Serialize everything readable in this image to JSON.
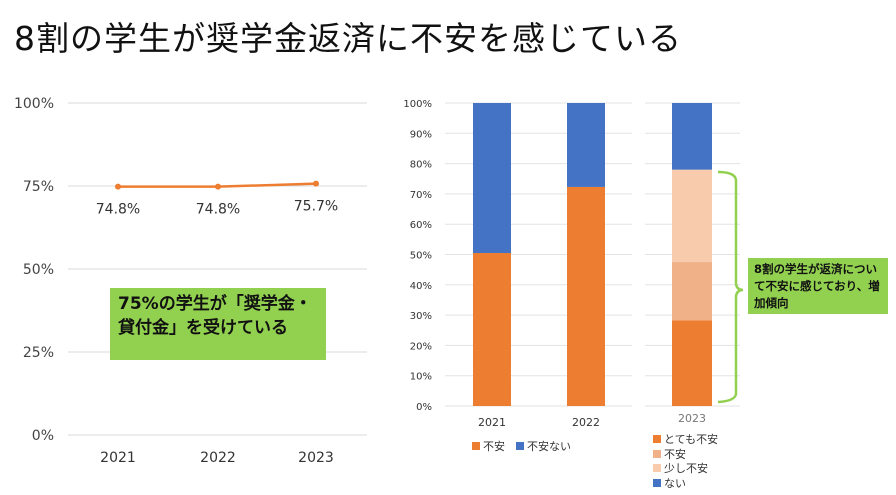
{
  "title": "8割の学生が奨学金返済に不安を感じている",
  "notes": {
    "left": "75%の学生が「奨学金・貸付金」を受けている",
    "right": "8割の学生が返済について不安に感じており、増加傾向"
  },
  "chart_data": [
    {
      "type": "line",
      "categories": [
        "2021",
        "2022",
        "2023"
      ],
      "values": [
        74.8,
        74.8,
        75.7
      ],
      "data_labels": [
        "74.8%",
        "74.8%",
        "75.7%"
      ],
      "ylim": [
        0,
        100
      ],
      "yticks": [
        "0%",
        "25%",
        "50%",
        "75%",
        "100%"
      ],
      "grid": true,
      "color": "#ed7d31"
    },
    {
      "type": "bar",
      "stacked": true,
      "categories": [
        "2021",
        "2022"
      ],
      "series": [
        {
          "name": "不安",
          "values": [
            50.5,
            72.3
          ],
          "color": "#ed7d31"
        },
        {
          "name": "不安ない",
          "values": [
            49.5,
            27.7
          ],
          "color": "#4472c4"
        }
      ],
      "ylim": [
        0,
        100
      ],
      "yticks": [
        "0%",
        "10%",
        "20%",
        "30%",
        "40%",
        "50%",
        "60%",
        "70%",
        "80%",
        "90%",
        "100%"
      ],
      "legend": "bottom"
    },
    {
      "type": "bar",
      "stacked": true,
      "categories": [
        "2023"
      ],
      "series": [
        {
          "name": "とても不安",
          "values": [
            28.3
          ],
          "color": "#ed7d31"
        },
        {
          "name": "不安",
          "values": [
            19.2
          ],
          "color": "#f0b088"
        },
        {
          "name": "少し不安",
          "values": [
            30.5
          ],
          "color": "#f8cbad"
        },
        {
          "name": "ない",
          "values": [
            22.0
          ],
          "color": "#4472c4"
        }
      ],
      "ylim": [
        0,
        100
      ],
      "legend": "bottom"
    }
  ]
}
